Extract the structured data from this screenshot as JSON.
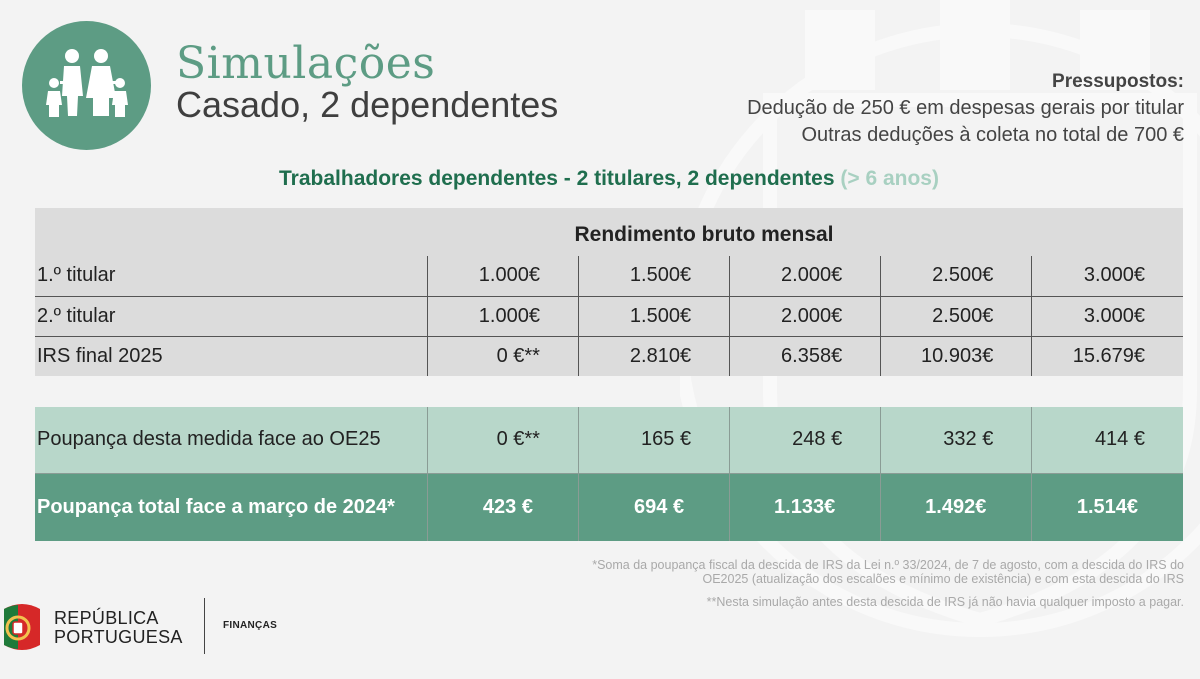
{
  "header": {
    "title": "Simulações",
    "subtitle": "Casado, 2 dependentes"
  },
  "assumptions": {
    "heading": "Pressupostos:",
    "line1": "Dedução de 250 € em despesas gerais por titular",
    "line2": "Outras deduções à coleta no total de 700 €"
  },
  "section": {
    "title": "Trabalhadores dependentes - 2 titulares, 2 dependentes",
    "note": "(> 6 anos)"
  },
  "table": {
    "header": "Rendimento bruto mensal",
    "rows": [
      {
        "label": "1.º titular",
        "values": [
          "1.000€",
          "1.500€",
          "2.000€",
          "2.500€",
          "3.000€"
        ]
      },
      {
        "label": "2.º titular",
        "values": [
          "1.000€",
          "1.500€",
          "2.000€",
          "2.500€",
          "3.000€"
        ]
      },
      {
        "label": "IRS final 2025",
        "values": [
          "0 €**",
          "2.810€",
          "6.358€",
          "10.903€",
          "15.679€"
        ]
      }
    ]
  },
  "savings": {
    "rows": [
      {
        "label": "Poupança desta medida face ao OE25",
        "values": [
          "0 €**",
          "165 €",
          "248 €",
          "332 €",
          "414 €"
        ]
      },
      {
        "label": "Poupança total face a março de 2024*",
        "values": [
          "423 €",
          "694 €",
          "1.133€",
          "1.492€",
          "1.514€"
        ]
      }
    ]
  },
  "footnotes": {
    "note1": "*Soma da poupança fiscal da descida de IRS da Lei n.º 33/2024, de 7 de agosto, com a descida do IRS do OE2025 (atualização dos escalões e mínimo de existência) e com esta descida do IRS",
    "note2": "**Nesta simulação antes desta descida de IRS já não havia qualquer imposto a pagar."
  },
  "branding": {
    "line1": "REPÚBLICA",
    "line2": "PORTUGUESA",
    "ministry": "FINANÇAS"
  },
  "colors": {
    "brand_green": "#5d9c84",
    "dark_green": "#1f6e4e",
    "light_green": "#b8d7ca",
    "grey_table": "#dcdcdc"
  }
}
